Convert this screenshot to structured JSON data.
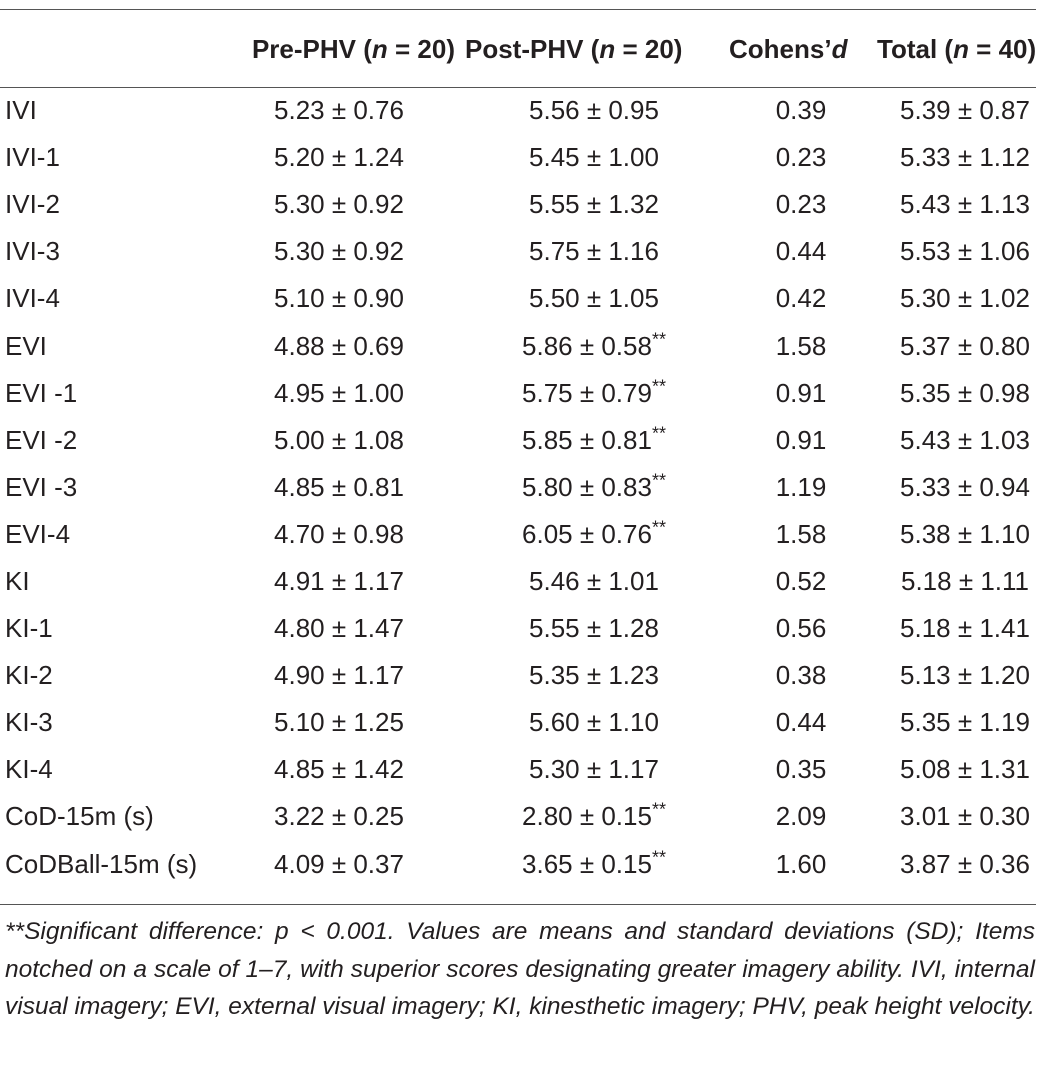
{
  "headers": {
    "col0": "",
    "col1_pre": "Pre-PHV (",
    "col1_n": "n",
    "col1_post": " = 20)",
    "col2_pre": "Post-PHV (",
    "col2_n": "n",
    "col2_post": " = 20)",
    "col3_pre": "Cohens’",
    "col3_d": "d",
    "col4_pre": "Total (",
    "col4_n": "n",
    "col4_post": " = 40)"
  },
  "rows": [
    {
      "label": "IVI",
      "pre": "5.23 ± 0.76",
      "post": "5.56 ± 0.95",
      "post_sig": "",
      "d": "0.39",
      "total": "5.39 ± 0.87"
    },
    {
      "label": "IVI-1",
      "pre": "5.20 ± 1.24",
      "post": "5.45 ± 1.00",
      "post_sig": "",
      "d": "0.23",
      "total": "5.33 ± 1.12"
    },
    {
      "label": "IVI-2",
      "pre": "5.30 ± 0.92",
      "post": "5.55 ± 1.32",
      "post_sig": "",
      "d": "0.23",
      "total": "5.43 ± 1.13"
    },
    {
      "label": "IVI-3",
      "pre": "5.30 ± 0.92",
      "post": "5.75 ± 1.16",
      "post_sig": "",
      "d": "0.44",
      "total": "5.53 ± 1.06"
    },
    {
      "label": "IVI-4",
      "pre": "5.10 ± 0.90",
      "post": "5.50 ± 1.05",
      "post_sig": "",
      "d": "0.42",
      "total": "5.30 ± 1.02"
    },
    {
      "label": "EVI",
      "pre": "4.88 ± 0.69",
      "post": "5.86 ± 0.58",
      "post_sig": "**",
      "d": "1.58",
      "total": "5.37 ± 0.80"
    },
    {
      "label": "EVI -1",
      "pre": "4.95 ± 1.00",
      "post": "5.75 ± 0.79",
      "post_sig": "**",
      "d": "0.91",
      "total": "5.35 ± 0.98"
    },
    {
      "label": "EVI -2",
      "pre": "5.00 ± 1.08",
      "post": "5.85 ± 0.81",
      "post_sig": "**",
      "d": "0.91",
      "total": "5.43 ± 1.03"
    },
    {
      "label": "EVI -3",
      "pre": "4.85 ± 0.81",
      "post": "5.80 ± 0.83",
      "post_sig": "**",
      "d": "1.19",
      "total": "5.33 ± 0.94"
    },
    {
      "label": "EVI-4",
      "pre": "4.70 ± 0.98",
      "post": "6.05 ± 0.76",
      "post_sig": "**",
      "d": "1.58",
      "total": "5.38 ± 1.10"
    },
    {
      "label": "KI",
      "pre": "4.91 ± 1.17",
      "post": "5.46 ± 1.01",
      "post_sig": "",
      "d": "0.52",
      "total": "5.18 ± 1.11"
    },
    {
      "label": "KI-1",
      "pre": "4.80 ± 1.47",
      "post": "5.55 ± 1.28",
      "post_sig": "",
      "d": "0.56",
      "total": "5.18 ± 1.41"
    },
    {
      "label": "KI-2",
      "pre": "4.90 ± 1.17",
      "post": "5.35 ± 1.23",
      "post_sig": "",
      "d": "0.38",
      "total": "5.13 ± 1.20"
    },
    {
      "label": "KI-3",
      "pre": "5.10 ± 1.25",
      "post": "5.60 ± 1.10",
      "post_sig": "",
      "d": "0.44",
      "total": "5.35 ± 1.19"
    },
    {
      "label": "KI-4",
      "pre": "4.85 ± 1.42",
      "post": "5.30 ± 1.17",
      "post_sig": "",
      "d": "0.35",
      "total": "5.08 ± 1.31"
    },
    {
      "label": "CoD-15m (s)",
      "pre": "3.22 ± 0.25",
      "post": "2.80 ± 0.15",
      "post_sig": "**",
      "d": "2.09",
      "total": "3.01 ± 0.30"
    },
    {
      "label": "CoDBall-15m (s)",
      "pre": "4.09 ± 0.37",
      "post": "3.65 ± 0.15",
      "post_sig": "**",
      "d": "1.60",
      "total": "3.87 ± 0.36"
    }
  ],
  "footnote": "**Significant difference: p < 0.001. Values are means and standard deviations (SD); Items notched on a scale of 1–7, with superior scores designating greater imagery ability. IVI, internal visual imagery; EVI, external visual imagery; KI, kinesthetic imagery; PHV, peak height velocity.",
  "colors": {
    "text": "#231f20",
    "rule": "#555555",
    "background": "#ffffff"
  }
}
